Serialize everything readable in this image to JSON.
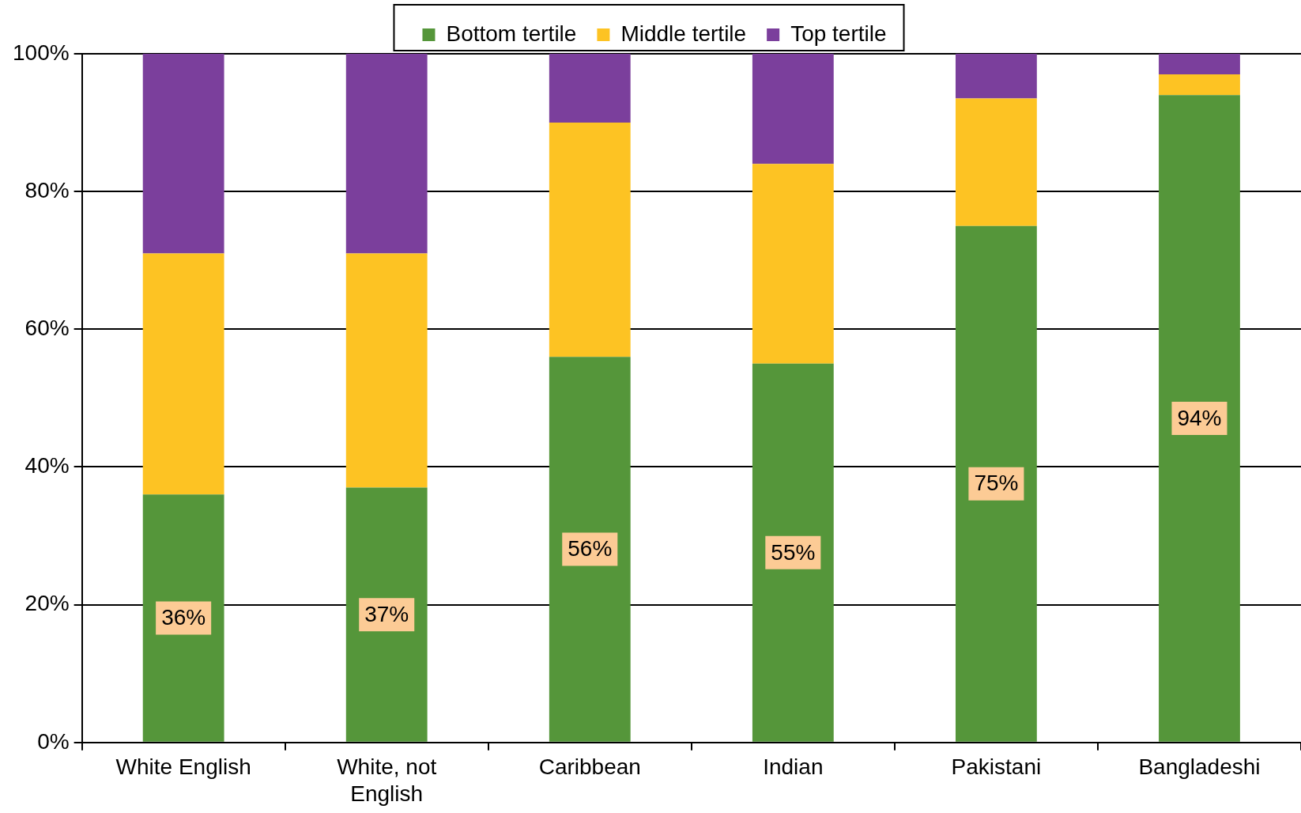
{
  "chart_data": {
    "type": "bar",
    "stacked": true,
    "categories": [
      "White English",
      "White, not English",
      "Caribbean",
      "Indian",
      "Pakistani",
      "Bangladeshi"
    ],
    "series": [
      {
        "name": "Bottom tertile",
        "color": "#55963a",
        "values": [
          36,
          37,
          56,
          55,
          75,
          94
        ],
        "value_labels": [
          "36%",
          "37%",
          "56%",
          "55%",
          "75%",
          "94%"
        ]
      },
      {
        "name": "Middle tertile",
        "color": "#fdc323",
        "values": [
          35,
          34,
          34,
          29,
          18.5,
          3
        ]
      },
      {
        "name": "Top tertile",
        "color": "#7b3f9c",
        "values": [
          29,
          29,
          10,
          16,
          6.5,
          3
        ]
      }
    ],
    "ylim": [
      0,
      100
    ],
    "yticks": [
      {
        "value": 0,
        "label": "0%"
      },
      {
        "value": 20,
        "label": "20%"
      },
      {
        "value": 40,
        "label": "40%"
      },
      {
        "value": 60,
        "label": "60%"
      },
      {
        "value": 80,
        "label": "80%"
      },
      {
        "value": 100,
        "label": "100%"
      }
    ],
    "grid": "y",
    "legend": "top"
  }
}
